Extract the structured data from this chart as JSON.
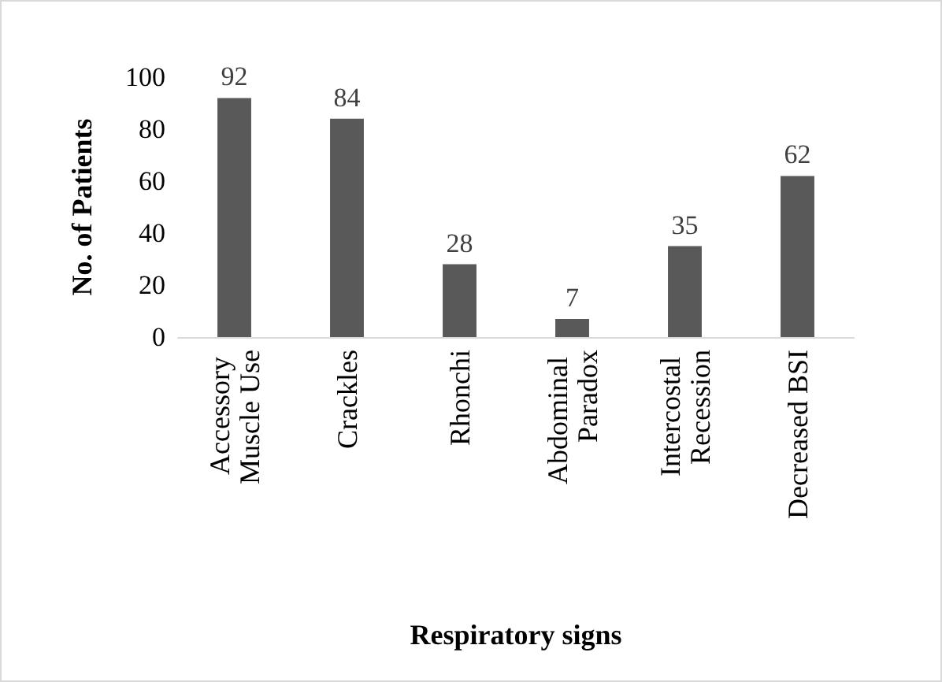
{
  "chart_data": {
    "type": "bar",
    "xlabel": "Respiratory signs",
    "ylabel": "No. of Patients",
    "categories": [
      "Accessory Muscle Use",
      "Crackles",
      "Rhonchi",
      "Abdominal Paradox",
      "Intercostal Recession",
      "Decreased BSI"
    ],
    "values": [
      92,
      84,
      28,
      7,
      35,
      62
    ],
    "color": "#595959",
    "ylim": [
      0,
      100
    ],
    "yticks": [
      0,
      20,
      40,
      60,
      80,
      100
    ],
    "grid": false,
    "data_labels": true
  }
}
